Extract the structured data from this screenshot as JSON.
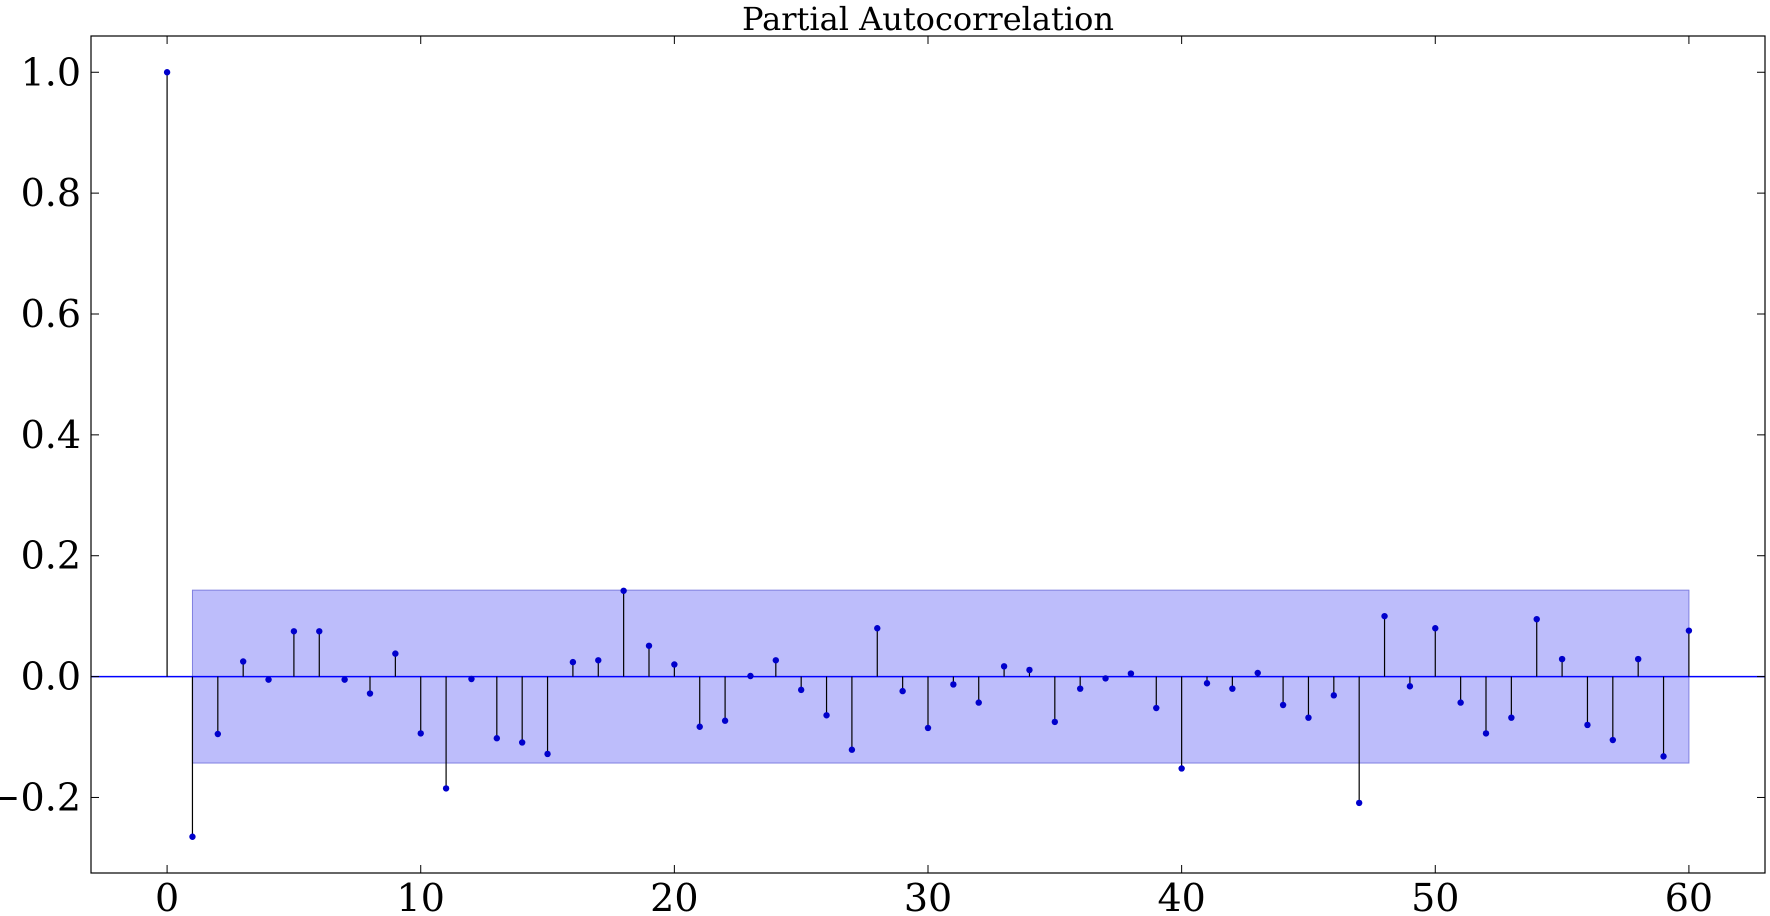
{
  "chart_data": {
    "type": "stem",
    "title": "Partial Autocorrelation",
    "xlabel": "",
    "ylabel": "",
    "xlim": [
      -3,
      63
    ],
    "ylim": [
      -0.325,
      1.06
    ],
    "x_ticks": [
      0,
      10,
      20,
      30,
      40,
      50,
      60
    ],
    "y_ticks": [
      -0.2,
      0.0,
      0.2,
      0.4,
      0.6,
      0.8,
      1.0
    ],
    "x_tick_labels": [
      "0",
      "10",
      "20",
      "30",
      "40",
      "50",
      "60"
    ],
    "y_tick_labels": [
      "−0.2",
      "0.0",
      "0.2",
      "0.4",
      "0.6",
      "0.8",
      "1.0"
    ],
    "grid": false,
    "confidence_band": {
      "x_range": [
        1,
        60
      ],
      "lower": -0.143,
      "upper": 0.143
    },
    "lags": [
      0,
      1,
      2,
      3,
      4,
      5,
      6,
      7,
      8,
      9,
      10,
      11,
      12,
      13,
      14,
      15,
      16,
      17,
      18,
      19,
      20,
      21,
      22,
      23,
      24,
      25,
      26,
      27,
      28,
      29,
      30,
      31,
      32,
      33,
      34,
      35,
      36,
      37,
      38,
      39,
      40,
      41,
      42,
      43,
      44,
      45,
      46,
      47,
      48,
      49,
      50,
      51,
      52,
      53,
      54,
      55,
      56,
      57,
      58,
      59,
      60
    ],
    "values": [
      1.0,
      -0.265,
      -0.095,
      0.025,
      -0.005,
      0.075,
      0.075,
      -0.005,
      -0.028,
      0.038,
      -0.094,
      -0.185,
      -0.004,
      -0.102,
      -0.109,
      -0.128,
      0.024,
      0.027,
      0.142,
      0.051,
      0.02,
      -0.083,
      -0.073,
      0.001,
      0.027,
      -0.022,
      -0.064,
      -0.121,
      0.08,
      -0.024,
      -0.085,
      -0.013,
      -0.043,
      0.017,
      0.011,
      -0.075,
      -0.02,
      -0.003,
      0.005,
      -0.052,
      -0.152,
      -0.011,
      -0.02,
      0.006,
      -0.047,
      -0.068,
      -0.031,
      -0.209,
      0.1,
      -0.016,
      0.08,
      -0.043,
      -0.094,
      -0.068,
      0.095,
      0.029,
      -0.08,
      -0.105,
      0.029,
      -0.132,
      0.076
    ],
    "colors": {
      "marker": "#0000cc",
      "stem": "#000000",
      "zero_line": "#0000ff",
      "band_fill": "#bdbdfb",
      "band_edge": "#8080e0",
      "axes": "#000000"
    }
  }
}
